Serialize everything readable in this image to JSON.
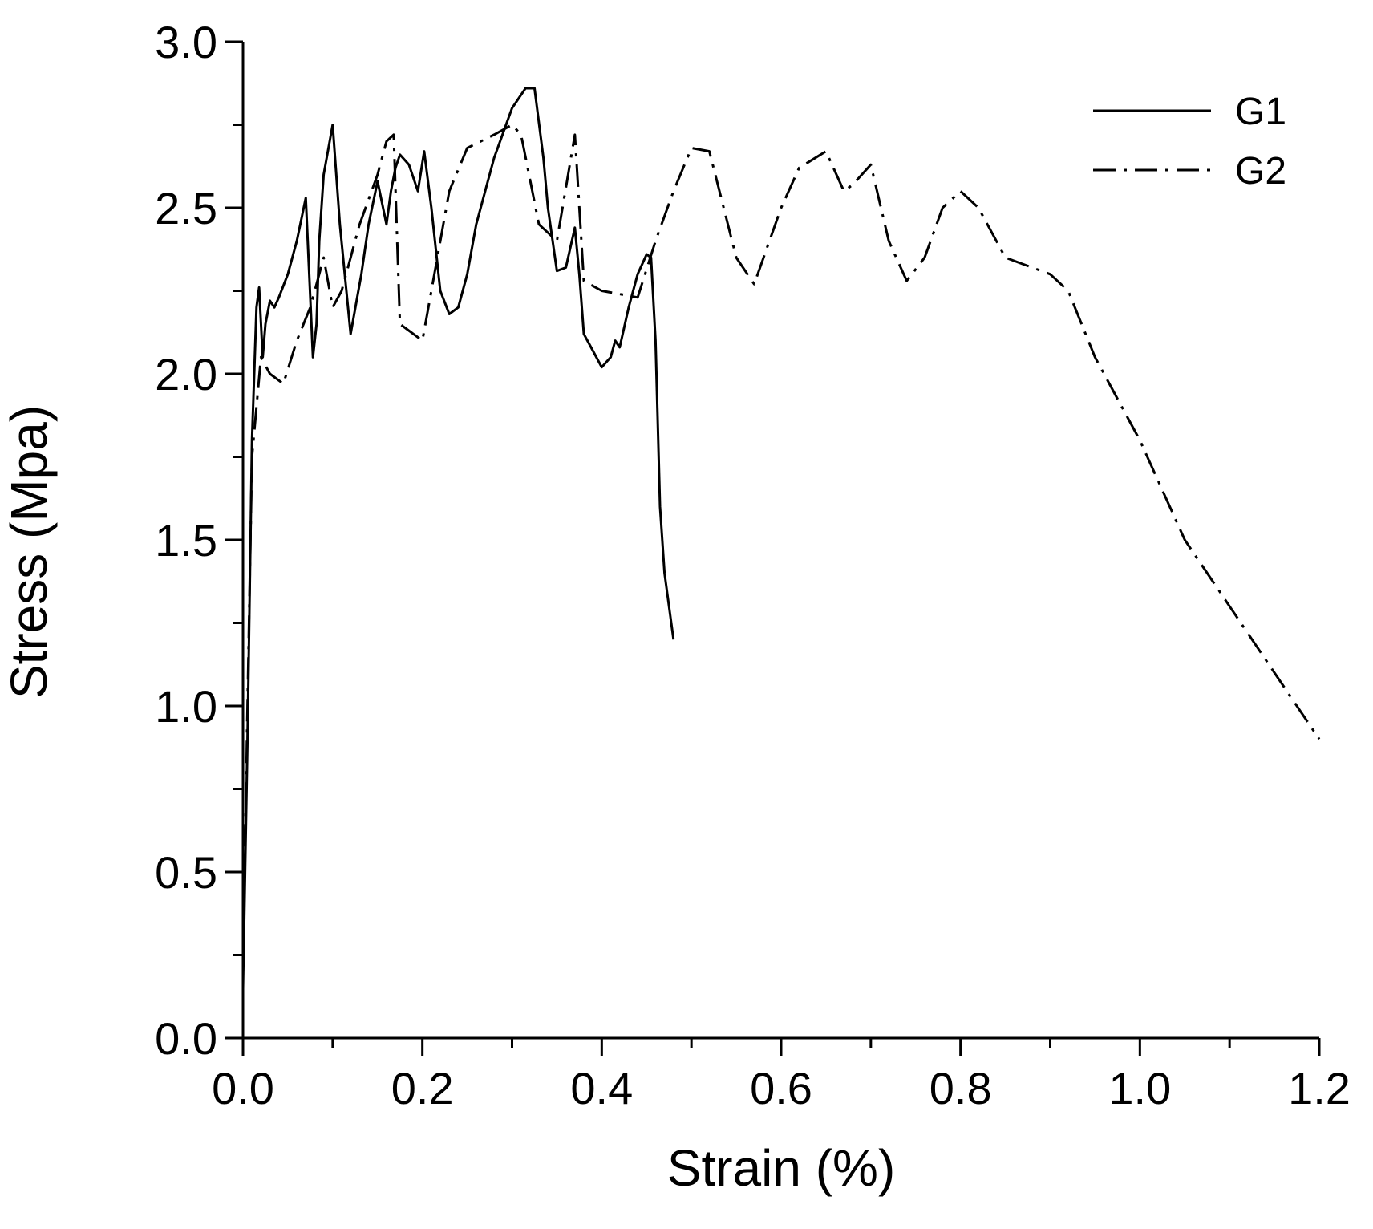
{
  "chart_data": {
    "type": "line",
    "title": "",
    "xlabel": "Strain (%)",
    "ylabel": "Stress (Mpa)",
    "xlim": [
      0,
      1.2
    ],
    "ylim": [
      0,
      3.0
    ],
    "xticks": [
      "0.0",
      "0.2",
      "0.4",
      "0.6",
      "0.8",
      "1.0",
      "1.2"
    ],
    "yticks": [
      "0.0",
      "0.5",
      "1.0",
      "1.5",
      "2.0",
      "2.5",
      "3.0"
    ],
    "grid": false,
    "legend_position": "top-right",
    "series": [
      {
        "name": "G1",
        "style": "solid",
        "color": "#000000",
        "x": [
          0.0,
          0.005,
          0.01,
          0.015,
          0.018,
          0.022,
          0.025,
          0.03,
          0.035,
          0.04,
          0.05,
          0.06,
          0.07,
          0.078,
          0.082,
          0.085,
          0.09,
          0.1,
          0.108,
          0.12,
          0.132,
          0.14,
          0.15,
          0.16,
          0.165,
          0.17,
          0.175,
          0.185,
          0.195,
          0.202,
          0.21,
          0.22,
          0.23,
          0.24,
          0.25,
          0.26,
          0.28,
          0.3,
          0.315,
          0.325,
          0.335,
          0.34,
          0.35,
          0.36,
          0.37,
          0.375,
          0.38,
          0.39,
          0.4,
          0.41,
          0.415,
          0.42,
          0.43,
          0.44,
          0.45,
          0.455,
          0.46,
          0.465,
          0.47,
          0.48
        ],
        "y": [
          0.15,
          0.9,
          1.8,
          2.2,
          2.26,
          2.05,
          2.15,
          2.22,
          2.2,
          2.23,
          2.3,
          2.4,
          2.53,
          2.05,
          2.15,
          2.4,
          2.6,
          2.75,
          2.45,
          2.12,
          2.3,
          2.45,
          2.58,
          2.45,
          2.55,
          2.62,
          2.66,
          2.63,
          2.55,
          2.67,
          2.5,
          2.25,
          2.18,
          2.2,
          2.3,
          2.45,
          2.65,
          2.8,
          2.86,
          2.86,
          2.65,
          2.5,
          2.31,
          2.32,
          2.44,
          2.3,
          2.12,
          2.07,
          2.02,
          2.05,
          2.1,
          2.08,
          2.2,
          2.3,
          2.36,
          2.35,
          2.1,
          1.6,
          1.4,
          1.2
        ]
      },
      {
        "name": "G2",
        "style": "dashdot",
        "color": "#000000",
        "x": [
          0.0,
          0.005,
          0.01,
          0.02,
          0.03,
          0.045,
          0.06,
          0.075,
          0.09,
          0.1,
          0.11,
          0.13,
          0.15,
          0.16,
          0.168,
          0.175,
          0.19,
          0.2,
          0.21,
          0.23,
          0.25,
          0.28,
          0.3,
          0.31,
          0.33,
          0.35,
          0.37,
          0.38,
          0.4,
          0.42,
          0.44,
          0.46,
          0.48,
          0.5,
          0.52,
          0.55,
          0.57,
          0.6,
          0.62,
          0.65,
          0.67,
          0.68,
          0.7,
          0.72,
          0.74,
          0.76,
          0.78,
          0.8,
          0.82,
          0.85,
          0.88,
          0.9,
          0.92,
          0.95,
          1.0,
          1.05,
          1.1,
          1.15,
          1.2
        ],
        "y": [
          0.2,
          1.0,
          1.75,
          2.05,
          2.0,
          1.97,
          2.1,
          2.2,
          2.35,
          2.2,
          2.25,
          2.45,
          2.6,
          2.7,
          2.72,
          2.15,
          2.12,
          2.1,
          2.25,
          2.55,
          2.68,
          2.72,
          2.75,
          2.72,
          2.45,
          2.4,
          2.72,
          2.28,
          2.25,
          2.24,
          2.23,
          2.4,
          2.55,
          2.68,
          2.67,
          2.35,
          2.27,
          2.5,
          2.62,
          2.67,
          2.55,
          2.57,
          2.63,
          2.4,
          2.28,
          2.35,
          2.5,
          2.55,
          2.5,
          2.35,
          2.32,
          2.3,
          2.25,
          2.05,
          1.8,
          1.5,
          1.3,
          1.1,
          0.9
        ]
      }
    ]
  }
}
